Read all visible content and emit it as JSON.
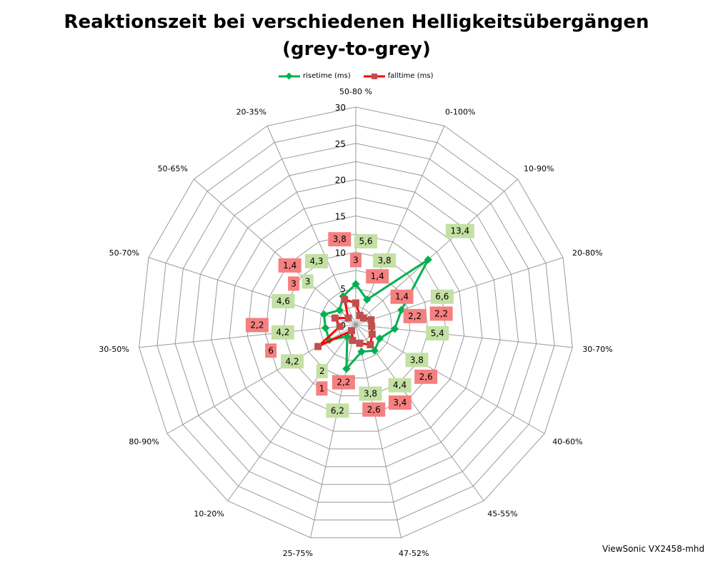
{
  "chart_data": {
    "type": "radar",
    "title_line1": "Reaktionszeit bei verschiedenen Helligkeitsübergängen",
    "title_line2": "(grey-to-grey)",
    "categories": [
      "50-80 %",
      "0-100%",
      "10-90%",
      "20-80%",
      "30-70%",
      "40-60%",
      "45-55%",
      "47-52%",
      "25-75%",
      "10-20%",
      "80-90%",
      "30-50%",
      "50-70%",
      "50-65%",
      "20-35%"
    ],
    "series": [
      {
        "name": "risetime (ms)",
        "color": "#00b050",
        "label_bg": "#c4e0a4",
        "values": [
          5.6,
          3.8,
          13.4,
          6.6,
          5.4,
          3.8,
          4.4,
          3.8,
          6.2,
          2,
          4.2,
          4.2,
          4.6,
          3,
          4.3
        ],
        "labels": [
          "5,6",
          "3,8",
          "13,4",
          "6,6",
          "5,4",
          "3,8",
          "4,4",
          "3,8",
          "6,2",
          "2",
          "4,2",
          "4,2",
          "4,6",
          "3",
          "4,3"
        ]
      },
      {
        "name": "falltime (ms)",
        "color": "#ff0000",
        "marker_color": "#c0504d",
        "label_bg": "#f58080",
        "values": [
          3,
          1.4,
          1.4,
          2.2,
          2.2,
          2.6,
          3.4,
          2.6,
          2.2,
          1,
          6,
          2.2,
          3,
          1.4,
          3.8
        ],
        "labels": [
          "3",
          "1,4",
          "1,4",
          "2,2",
          "2,2",
          "2,6",
          "3,4",
          "2,6",
          "2,2",
          "1",
          "6",
          "2,2",
          "3",
          "1,4",
          "3,8"
        ]
      }
    ],
    "axis": {
      "min": 0,
      "max": 30,
      "step": 5,
      "tick_labels": [
        "0",
        "5",
        "10",
        "15",
        "20",
        "25",
        "30"
      ]
    },
    "legend_position": "top",
    "footer": "ViewSonic VX2458-mhd"
  }
}
